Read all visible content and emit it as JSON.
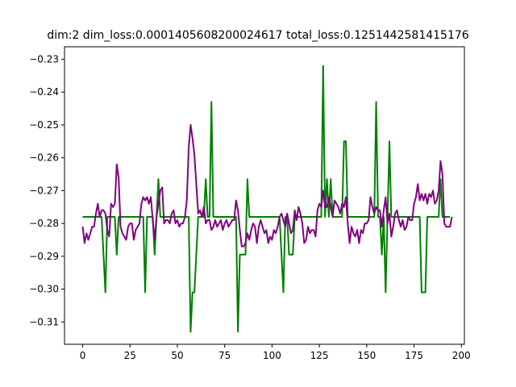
{
  "chart_data": {
    "type": "line",
    "title": "dim:2 dim_loss:0.0001405608200024617 total_loss:0.1251442581415176",
    "xlabel": "",
    "ylabel": "",
    "xlim": [
      -9.6,
      201.6
    ],
    "ylim": [
      -0.3168,
      -0.2262
    ],
    "x_ticks": [
      0,
      25,
      50,
      75,
      100,
      125,
      150,
      175,
      200
    ],
    "x_tick_labels": [
      "0",
      "25",
      "50",
      "75",
      "100",
      "125",
      "150",
      "175",
      "200"
    ],
    "y_ticks": [
      -0.23,
      -0.24,
      -0.25,
      -0.26,
      -0.27,
      -0.28,
      -0.29,
      -0.3,
      -0.31
    ],
    "y_tick_labels": [
      "−0.23",
      "−0.24",
      "−0.25",
      "−0.26",
      "−0.27",
      "−0.28",
      "−0.29",
      "−0.30",
      "−0.31"
    ],
    "grid": false,
    "legend": "none",
    "series": [
      {
        "color": "#008000",
        "values": [
          -0.278,
          -0.278,
          -0.278,
          -0.278,
          -0.278,
          -0.278,
          -0.278,
          -0.278,
          -0.278,
          -0.278,
          -0.278,
          -0.2895,
          -0.301,
          -0.278,
          -0.278,
          -0.278,
          -0.278,
          -0.278,
          -0.2895,
          -0.278,
          -0.278,
          -0.278,
          -0.278,
          -0.278,
          -0.278,
          -0.278,
          -0.278,
          -0.278,
          -0.278,
          -0.278,
          -0.278,
          -0.278,
          -0.278,
          -0.301,
          -0.278,
          -0.278,
          -0.278,
          -0.278,
          -0.2895,
          -0.278,
          -0.2665,
          -0.278,
          -0.278,
          -0.278,
          -0.278,
          -0.278,
          -0.278,
          -0.278,
          -0.278,
          -0.278,
          -0.278,
          -0.278,
          -0.278,
          -0.278,
          -0.278,
          -0.278,
          -0.278,
          -0.313,
          -0.301,
          -0.301,
          -0.2895,
          -0.278,
          -0.278,
          -0.278,
          -0.278,
          -0.2665,
          -0.278,
          -0.278,
          -0.243,
          -0.278,
          -0.278,
          -0.278,
          -0.278,
          -0.278,
          -0.278,
          -0.278,
          -0.278,
          -0.278,
          -0.278,
          -0.278,
          -0.278,
          -0.278,
          -0.313,
          -0.2895,
          -0.2895,
          -0.2895,
          -0.2895,
          -0.2665,
          -0.278,
          -0.278,
          -0.278,
          -0.278,
          -0.278,
          -0.278,
          -0.278,
          -0.278,
          -0.278,
          -0.278,
          -0.278,
          -0.278,
          -0.278,
          -0.278,
          -0.278,
          -0.278,
          -0.278,
          -0.2895,
          -0.301,
          -0.278,
          -0.278,
          -0.2895,
          -0.2895,
          -0.2895,
          -0.278,
          -0.278,
          -0.278,
          -0.278,
          -0.278,
          -0.278,
          -0.278,
          -0.278,
          -0.278,
          -0.278,
          -0.278,
          -0.278,
          -0.278,
          -0.278,
          -0.278,
          -0.232,
          -0.278,
          -0.2665,
          -0.278,
          -0.2665,
          -0.278,
          -0.278,
          -0.278,
          -0.278,
          -0.278,
          -0.278,
          -0.255,
          -0.255,
          -0.278,
          -0.278,
          -0.278,
          -0.278,
          -0.278,
          -0.278,
          -0.278,
          -0.278,
          -0.278,
          -0.278,
          -0.278,
          -0.278,
          -0.278,
          -0.278,
          -0.278,
          -0.243,
          -0.278,
          -0.278,
          -0.2895,
          -0.278,
          -0.301,
          -0.278,
          -0.255,
          -0.278,
          -0.278,
          -0.278,
          -0.278,
          -0.278,
          -0.278,
          -0.278,
          -0.278,
          -0.278,
          -0.278,
          -0.278,
          -0.278,
          -0.278,
          -0.278,
          -0.278,
          -0.278,
          -0.301,
          -0.301,
          -0.301,
          -0.278,
          -0.278,
          -0.278,
          -0.278,
          -0.278,
          -0.278,
          -0.278,
          -0.2665,
          -0.278,
          -0.278,
          -0.278,
          -0.278,
          -0.278
        ]
      },
      {
        "color": "#800080",
        "values": [
          -0.281,
          -0.286,
          -0.283,
          -0.285,
          -0.283,
          -0.281,
          -0.281,
          -0.277,
          -0.274,
          -0.278,
          -0.276,
          -0.276,
          -0.277,
          -0.282,
          -0.284,
          -0.274,
          -0.275,
          -0.274,
          -0.262,
          -0.266,
          -0.281,
          -0.283,
          -0.284,
          -0.285,
          -0.281,
          -0.28,
          -0.28,
          -0.285,
          -0.282,
          -0.281,
          -0.28,
          -0.274,
          -0.272,
          -0.273,
          -0.272,
          -0.274,
          -0.272,
          -0.279,
          -0.285,
          -0.278,
          -0.274,
          -0.27,
          -0.269,
          -0.28,
          -0.279,
          -0.279,
          -0.28,
          -0.277,
          -0.276,
          -0.28,
          -0.279,
          -0.281,
          -0.28,
          -0.28,
          -0.278,
          -0.273,
          -0.257,
          -0.25,
          -0.254,
          -0.259,
          -0.268,
          -0.277,
          -0.276,
          -0.278,
          -0.275,
          -0.28,
          -0.279,
          -0.279,
          -0.282,
          -0.281,
          -0.279,
          -0.281,
          -0.28,
          -0.279,
          -0.282,
          -0.28,
          -0.279,
          -0.281,
          -0.28,
          -0.279,
          -0.279,
          -0.273,
          -0.276,
          -0.282,
          -0.287,
          -0.287,
          -0.286,
          -0.283,
          -0.285,
          -0.282,
          -0.28,
          -0.281,
          -0.286,
          -0.281,
          -0.279,
          -0.281,
          -0.283,
          -0.282,
          -0.286,
          -0.284,
          -0.285,
          -0.282,
          -0.283,
          -0.281,
          -0.278,
          -0.277,
          -0.279,
          -0.281,
          -0.277,
          -0.28,
          -0.283,
          -0.282,
          -0.276,
          -0.279,
          -0.275,
          -0.277,
          -0.28,
          -0.286,
          -0.285,
          -0.281,
          -0.283,
          -0.282,
          -0.282,
          -0.284,
          -0.276,
          -0.274,
          -0.275,
          -0.27,
          -0.275,
          -0.275,
          -0.272,
          -0.275,
          -0.278,
          -0.273,
          -0.274,
          -0.275,
          -0.277,
          -0.274,
          -0.275,
          -0.272,
          -0.28,
          -0.286,
          -0.281,
          -0.283,
          -0.284,
          -0.282,
          -0.286,
          -0.282,
          -0.283,
          -0.28,
          -0.28,
          -0.279,
          -0.272,
          -0.275,
          -0.277,
          -0.275,
          -0.276,
          -0.276,
          -0.281,
          -0.276,
          -0.272,
          -0.28,
          -0.277,
          -0.284,
          -0.281,
          -0.277,
          -0.276,
          -0.279,
          -0.281,
          -0.279,
          -0.282,
          -0.281,
          -0.278,
          -0.279,
          -0.279,
          -0.274,
          -0.272,
          -0.268,
          -0.273,
          -0.271,
          -0.273,
          -0.271,
          -0.274,
          -0.271,
          -0.272,
          -0.27,
          -0.274,
          -0.273,
          -0.27,
          -0.261,
          -0.265,
          -0.28,
          -0.281,
          -0.281,
          -0.281,
          -0.278
        ]
      }
    ]
  }
}
